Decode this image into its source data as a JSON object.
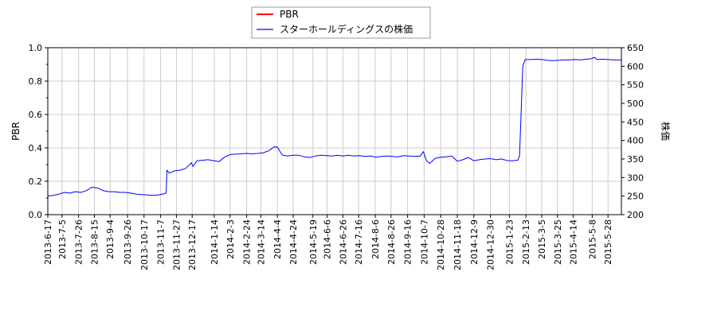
{
  "chart_data": {
    "type": "line",
    "legend": {
      "placement": "top-center",
      "entries": [
        {
          "name": "PBR",
          "color": "#ff0000"
        },
        {
          "name": "スターホールディングスの株価",
          "color": "#0000ff"
        }
      ]
    },
    "y_left": {
      "label": "PBR",
      "range": [
        0,
        1.0
      ],
      "ticks": [
        "0.0",
        "0.2",
        "0.4",
        "0.6",
        "0.8",
        "1.0"
      ]
    },
    "y_right": {
      "label": "株価",
      "range": [
        200,
        650
      ],
      "ticks": [
        "200",
        "250",
        "300",
        "350",
        "400",
        "450",
        "500",
        "550",
        "600",
        "650"
      ]
    },
    "x_range": [
      "2013-06-17",
      "2015-06-14"
    ],
    "x_ticks": [
      "2013-6-17",
      "2013-7-5",
      "2013-7-26",
      "2013-8-15",
      "2013-9-4",
      "2013-9-26",
      "2013-10-17",
      "2013-11-7",
      "2013-11-27",
      "2013-12-17",
      "2014-1-14",
      "2014-2-3",
      "2014-2-24",
      "2014-3-14",
      "2014-4-4",
      "2014-4-24",
      "2014-5-19",
      "2014-6-6",
      "2014-6-26",
      "2014-7-16",
      "2014-8-6",
      "2014-8-26",
      "2014-9-16",
      "2014-10-7",
      "2014-10-28",
      "2014-11-18",
      "2014-12-9",
      "2014-12-30",
      "2015-1-23",
      "2015-2-13",
      "2015-3-5",
      "2015-3-25",
      "2015-4-14",
      "2015-5-8",
      "2015-5-28"
    ],
    "grid": true,
    "series": [
      {
        "name": "スターホールディングスの株価",
        "axis": "right",
        "color": "#0000ff",
        "points": [
          [
            "2013-06-17",
            250
          ],
          [
            "2013-06-24",
            252
          ],
          [
            "2013-07-01",
            255
          ],
          [
            "2013-07-08",
            260
          ],
          [
            "2013-07-15",
            258
          ],
          [
            "2013-07-22",
            262
          ],
          [
            "2013-07-29",
            260
          ],
          [
            "2013-08-05",
            265
          ],
          [
            "2013-08-12",
            274
          ],
          [
            "2013-08-19",
            272
          ],
          [
            "2013-08-26",
            265
          ],
          [
            "2013-09-02",
            262
          ],
          [
            "2013-09-09",
            262
          ],
          [
            "2013-09-16",
            260
          ],
          [
            "2013-09-23",
            260
          ],
          [
            "2013-09-30",
            258
          ],
          [
            "2013-10-07",
            255
          ],
          [
            "2013-10-14",
            254
          ],
          [
            "2013-10-21",
            253
          ],
          [
            "2013-10-28",
            252
          ],
          [
            "2013-11-04",
            253
          ],
          [
            "2013-11-11",
            256
          ],
          [
            "2013-11-14",
            258
          ],
          [
            "2013-11-15",
            320
          ],
          [
            "2013-11-18",
            312
          ],
          [
            "2013-11-25",
            318
          ],
          [
            "2013-12-02",
            320
          ],
          [
            "2013-12-09",
            325
          ],
          [
            "2013-12-16",
            340
          ],
          [
            "2013-12-18",
            330
          ],
          [
            "2013-12-23",
            345
          ],
          [
            "2014-01-06",
            348
          ],
          [
            "2014-01-14",
            345
          ],
          [
            "2014-01-20",
            343
          ],
          [
            "2014-01-27",
            355
          ],
          [
            "2014-02-03",
            362
          ],
          [
            "2014-02-10",
            363
          ],
          [
            "2014-02-17",
            364
          ],
          [
            "2014-02-24",
            365
          ],
          [
            "2014-03-03",
            364
          ],
          [
            "2014-03-10",
            365
          ],
          [
            "2014-03-17",
            367
          ],
          [
            "2014-03-24",
            372
          ],
          [
            "2014-03-31",
            383
          ],
          [
            "2014-04-04",
            382
          ],
          [
            "2014-04-10",
            361
          ],
          [
            "2014-04-17",
            358
          ],
          [
            "2014-04-24",
            360
          ],
          [
            "2014-05-01",
            360
          ],
          [
            "2014-05-08",
            356
          ],
          [
            "2014-05-15",
            354
          ],
          [
            "2014-05-22",
            358
          ],
          [
            "2014-05-29",
            360
          ],
          [
            "2014-06-05",
            359
          ],
          [
            "2014-06-12",
            358
          ],
          [
            "2014-06-19",
            360
          ],
          [
            "2014-06-26",
            358
          ],
          [
            "2014-07-03",
            360
          ],
          [
            "2014-07-10",
            358
          ],
          [
            "2014-07-17",
            359
          ],
          [
            "2014-07-24",
            357
          ],
          [
            "2014-07-31",
            358
          ],
          [
            "2014-08-07",
            355
          ],
          [
            "2014-08-14",
            357
          ],
          [
            "2014-08-21",
            358
          ],
          [
            "2014-08-28",
            357
          ],
          [
            "2014-09-04",
            356
          ],
          [
            "2014-09-11",
            359
          ],
          [
            "2014-09-18",
            358
          ],
          [
            "2014-09-25",
            357
          ],
          [
            "2014-10-02",
            358
          ],
          [
            "2014-10-06",
            370
          ],
          [
            "2014-10-10",
            345
          ],
          [
            "2014-10-14",
            338
          ],
          [
            "2014-10-21",
            352
          ],
          [
            "2014-10-28",
            355
          ],
          [
            "2014-11-04",
            356
          ],
          [
            "2014-11-11",
            358
          ],
          [
            "2014-11-18",
            344
          ],
          [
            "2014-11-25",
            348
          ],
          [
            "2014-12-02",
            354
          ],
          [
            "2014-12-09",
            345
          ],
          [
            "2014-12-16",
            348
          ],
          [
            "2014-12-23",
            350
          ],
          [
            "2014-12-30",
            351
          ],
          [
            "2015-01-06",
            348
          ],
          [
            "2015-01-13",
            350
          ],
          [
            "2015-01-20",
            346
          ],
          [
            "2015-01-27",
            345
          ],
          [
            "2015-02-03",
            347
          ],
          [
            "2015-02-05",
            360
          ],
          [
            "2015-02-09",
            600
          ],
          [
            "2015-02-12",
            618
          ],
          [
            "2015-02-19",
            618
          ],
          [
            "2015-02-26",
            619
          ],
          [
            "2015-03-05",
            618
          ],
          [
            "2015-03-12",
            616
          ],
          [
            "2015-03-19",
            615
          ],
          [
            "2015-03-26",
            616
          ],
          [
            "2015-04-02",
            617
          ],
          [
            "2015-04-09",
            617
          ],
          [
            "2015-04-16",
            618
          ],
          [
            "2015-04-23",
            617
          ],
          [
            "2015-04-30",
            619
          ],
          [
            "2015-05-06",
            620
          ],
          [
            "2015-05-11",
            624
          ],
          [
            "2015-05-14",
            618
          ],
          [
            "2015-05-21",
            619
          ],
          [
            "2015-05-28",
            618
          ],
          [
            "2015-06-04",
            617
          ],
          [
            "2015-06-11",
            617
          ],
          [
            "2015-06-14",
            617
          ]
        ]
      }
    ]
  }
}
